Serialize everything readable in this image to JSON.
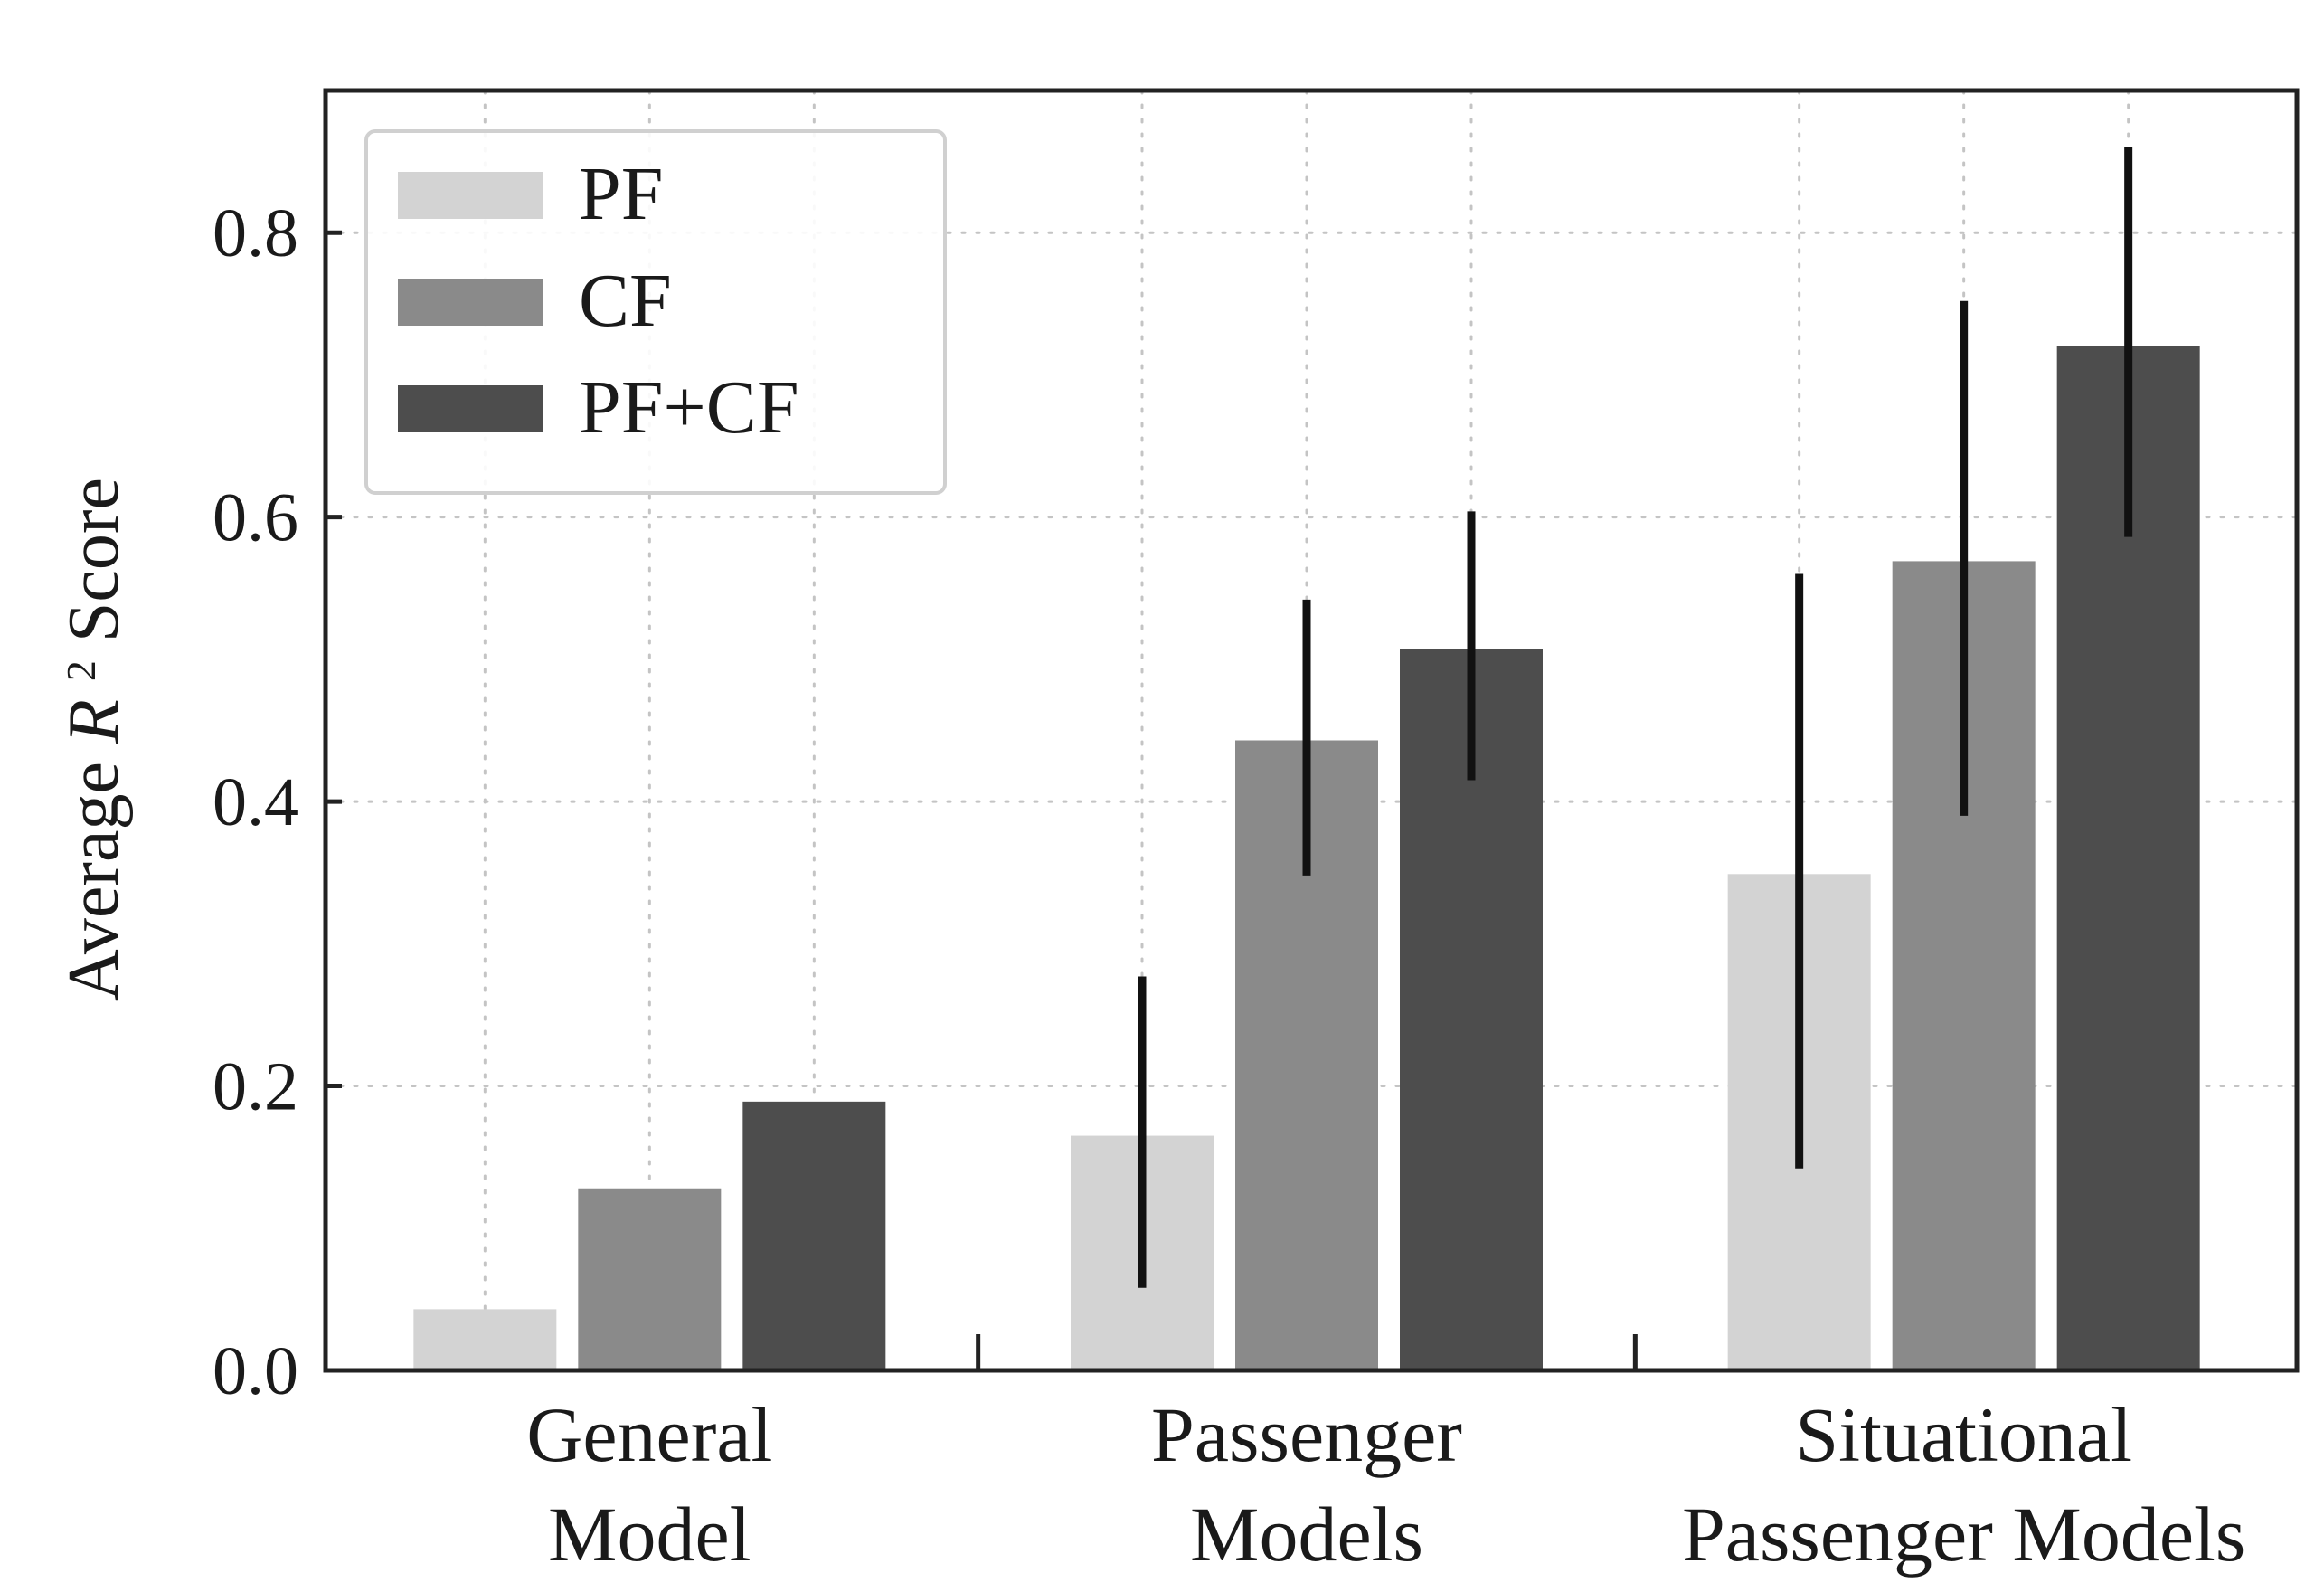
{
  "chart_data": {
    "type": "bar",
    "title": "",
    "xlabel": "",
    "ylabel": "Average R² Score",
    "ylabel_parts": {
      "prefix": "Average ",
      "var": "R",
      "sup": "2",
      "suffix": " Score"
    },
    "categories": [
      [
        "General",
        "Model"
      ],
      [
        "Passenger",
        "Models"
      ],
      [
        "Situational",
        "Passenger Models"
      ]
    ],
    "series": [
      {
        "name": "PF",
        "color": "#d3d3d3",
        "values": [
          0.043,
          0.165,
          0.349
        ],
        "errors": [
          null,
          [
            0.058,
            0.277
          ],
          [
            0.142,
            0.56
          ]
        ]
      },
      {
        "name": "CF",
        "color": "#8a8a8a",
        "values": [
          0.128,
          0.443,
          0.569
        ],
        "errors": [
          null,
          [
            0.348,
            0.542
          ],
          [
            0.39,
            0.752
          ]
        ]
      },
      {
        "name": "PF+CF",
        "color": "#4d4d4d",
        "values": [
          0.189,
          0.507,
          0.72
        ],
        "errors": [
          null,
          [
            0.415,
            0.604
          ],
          [
            0.586,
            0.86
          ]
        ]
      }
    ],
    "ylim": [
      0,
      0.9
    ],
    "yticks": [
      "0.0",
      "0.2",
      "0.4",
      "0.6",
      "0.8"
    ],
    "grid": true,
    "legend_position": "top-left"
  }
}
